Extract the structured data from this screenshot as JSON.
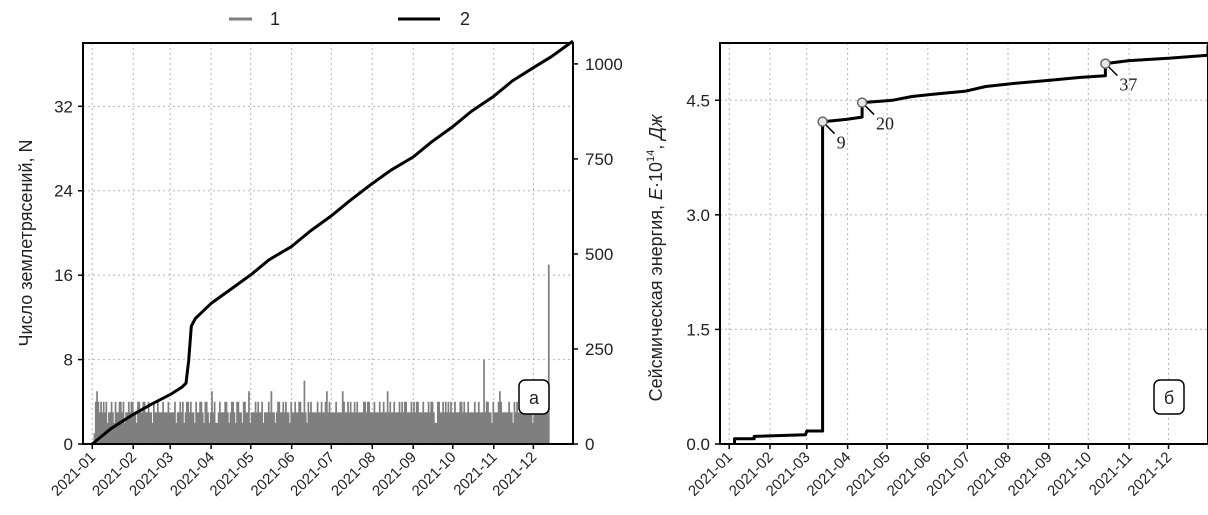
{
  "legend": [
    {
      "key": "1",
      "color": "#7f7f7f"
    },
    {
      "key": "2",
      "color": "#000000"
    }
  ],
  "chart_data": [
    {
      "type": "bar+line",
      "panel_label": "а",
      "ylabel_left": "Число землетрясений, N",
      "x_ticks": [
        "2021-01",
        "2021-02",
        "2021-03",
        "2021-04",
        "2021-05",
        "2021-06",
        "2021-07",
        "2021-08",
        "2021-09",
        "2021-10",
        "2021-11",
        "2021-12"
      ],
      "y_left_ticks": [
        "0",
        "8",
        "16",
        "24",
        "32"
      ],
      "y_right_ticks": [
        "0",
        "250",
        "500",
        "750",
        "1000"
      ],
      "ylim_left": [
        0,
        38
      ],
      "ylim_right": [
        0,
        1055
      ],
      "xlim": [
        "2020-12-25",
        "2021-12-31"
      ],
      "grid": true,
      "series": [
        {
          "name": "1",
          "kind": "bar",
          "axis": "left",
          "color": "#7f7f7f",
          "start_date": "2021-01-01",
          "values": [
            0,
            1,
            4,
            5,
            4,
            3,
            4,
            3,
            4,
            3,
            4,
            2,
            3,
            3,
            4,
            3,
            2,
            4,
            3,
            3,
            4,
            4,
            3,
            4,
            2,
            3,
            3,
            4,
            3,
            4,
            4,
            3,
            3,
            2,
            4,
            4,
            3,
            3,
            4,
            4,
            3,
            3,
            4,
            3,
            3,
            2,
            4,
            3,
            3,
            4,
            3,
            3,
            3,
            4,
            3,
            3,
            3,
            4,
            3,
            3,
            3,
            3,
            4,
            2,
            3,
            3,
            4,
            3,
            4,
            2,
            3,
            4,
            4,
            3,
            4,
            3,
            3,
            2,
            4,
            3,
            3,
            4,
            4,
            3,
            2,
            4,
            4,
            3,
            2,
            3,
            5,
            3,
            4,
            2,
            2,
            3,
            4,
            3,
            3,
            3,
            4,
            4,
            3,
            2,
            3,
            4,
            4,
            3,
            2,
            4,
            4,
            3,
            3,
            2,
            4,
            4,
            3,
            3,
            5,
            2,
            3,
            3,
            3,
            4,
            3,
            4,
            3,
            3,
            4,
            2,
            3,
            3,
            3,
            4,
            3,
            5,
            3,
            3,
            2,
            3,
            4,
            4,
            3,
            3,
            4,
            3,
            4,
            3,
            3,
            2,
            4,
            3,
            3,
            4,
            3,
            3,
            4,
            4,
            3,
            3,
            6,
            3,
            2,
            4,
            3,
            4,
            3,
            3,
            3,
            3,
            4,
            3,
            3,
            4,
            3,
            3,
            4,
            5,
            3,
            4,
            3,
            3,
            3,
            3,
            4,
            3,
            3,
            3,
            3,
            5,
            4,
            3,
            3,
            4,
            3,
            4,
            3,
            3,
            4,
            3,
            4,
            3,
            3,
            3,
            3,
            4,
            4,
            3,
            4,
            4,
            3,
            3,
            3,
            4,
            3,
            3,
            3,
            4,
            3,
            3,
            4,
            3,
            3,
            5,
            3,
            4,
            3,
            3,
            4,
            3,
            3,
            3,
            4,
            3,
            4,
            3,
            4,
            4,
            3,
            3,
            3,
            4,
            3,
            4,
            3,
            4,
            4,
            3,
            3,
            3,
            4,
            3,
            3,
            3,
            4,
            3,
            4,
            4,
            3,
            2,
            2,
            4,
            4,
            3,
            3,
            4,
            3,
            4,
            3,
            4,
            3,
            4,
            3,
            3,
            4,
            3,
            3,
            3,
            4,
            4,
            3,
            4,
            3,
            3,
            4,
            3,
            3,
            3,
            3,
            4,
            3,
            3,
            4,
            3,
            3,
            3,
            8,
            3,
            4,
            4,
            3,
            3,
            2,
            4,
            3,
            3,
            3,
            4,
            5,
            4,
            3,
            3,
            3,
            3,
            3,
            4,
            3,
            3,
            2,
            4,
            3,
            4,
            3,
            3,
            4,
            3,
            4,
            3,
            3,
            3,
            4,
            3,
            4,
            2,
            3,
            3,
            4,
            3,
            3,
            3,
            3,
            4,
            4,
            4,
            3,
            17
          ]
        },
        {
          "name": "2",
          "kind": "line",
          "axis": "right",
          "color": "#000000",
          "points": [
            [
              "2021-01-01",
              0
            ],
            [
              "2021-01-15",
              40
            ],
            [
              "2021-02-01",
              78
            ],
            [
              "2021-02-15",
              105
            ],
            [
              "2021-03-01",
              130
            ],
            [
              "2021-03-10",
              150
            ],
            [
              "2021-03-13",
              160
            ],
            [
              "2021-03-15",
              220
            ],
            [
              "2021-03-17",
              310
            ],
            [
              "2021-03-20",
              330
            ],
            [
              "2021-04-01",
              370
            ],
            [
              "2021-04-15",
              405
            ],
            [
              "2021-05-01",
              445
            ],
            [
              "2021-05-15",
              485
            ],
            [
              "2021-06-01",
              520
            ],
            [
              "2021-06-15",
              560
            ],
            [
              "2021-07-01",
              600
            ],
            [
              "2021-07-15",
              640
            ],
            [
              "2021-08-01",
              685
            ],
            [
              "2021-08-15",
              720
            ],
            [
              "2021-09-01",
              755
            ],
            [
              "2021-09-15",
              795
            ],
            [
              "2021-10-01",
              835
            ],
            [
              "2021-10-15",
              875
            ],
            [
              "2021-11-01",
              915
            ],
            [
              "2021-11-15",
              955
            ],
            [
              "2021-12-01",
              990
            ],
            [
              "2021-12-15",
              1020
            ],
            [
              "2021-12-27",
              1050
            ],
            [
              "2021-12-31",
              1060
            ]
          ]
        }
      ]
    },
    {
      "type": "line",
      "panel_label": "б",
      "ylabel_prefix": "Сейсмическая энергия, ",
      "ylabel_var": "E",
      "ylabel_mid": "·10",
      "ylabel_exp": "14",
      "ylabel_sep": ", ",
      "ylabel_unit": "Дж",
      "x_ticks": [
        "2021-01",
        "2021-02",
        "2021-03",
        "2021-04",
        "2021-05",
        "2021-06",
        "2021-07",
        "2021-08",
        "2021-09",
        "2021-10",
        "2021-11",
        "2021-12"
      ],
      "y_ticks": [
        "0.0",
        "1.5",
        "3.0",
        "4.5"
      ],
      "ylim": [
        0,
        5.25
      ],
      "xlim": [
        "2020-12-25",
        "2021-12-31"
      ],
      "grid": true,
      "series": [
        {
          "kind": "step",
          "color": "#000000",
          "points": [
            [
              "2021-01-05",
              0.0
            ],
            [
              "2021-01-05",
              0.07
            ],
            [
              "2021-01-20",
              0.07
            ],
            [
              "2021-01-20",
              0.1
            ],
            [
              "2021-02-28",
              0.12
            ],
            [
              "2021-03-01",
              0.17
            ],
            [
              "2021-03-13",
              0.17
            ],
            [
              "2021-03-13",
              4.22
            ],
            [
              "2021-03-31",
              4.25
            ],
            [
              "2021-04-12",
              4.28
            ],
            [
              "2021-04-12",
              4.47
            ],
            [
              "2021-05-05",
              4.5
            ],
            [
              "2021-05-20",
              4.55
            ],
            [
              "2021-06-05",
              4.58
            ],
            [
              "2021-06-30",
              4.62
            ],
            [
              "2021-07-15",
              4.68
            ],
            [
              "2021-08-05",
              4.72
            ],
            [
              "2021-09-01",
              4.76
            ],
            [
              "2021-09-25",
              4.8
            ],
            [
              "2021-10-14",
              4.82
            ],
            [
              "2021-10-14",
              4.98
            ],
            [
              "2021-11-01",
              5.02
            ],
            [
              "2021-12-01",
              5.05
            ],
            [
              "2021-12-31",
              5.09
            ],
            [
              "2021-12-31",
              5.22
            ]
          ]
        }
      ],
      "annotations": [
        {
          "label": "9",
          "date": "2021-03-13",
          "value": 4.22
        },
        {
          "label": "20",
          "date": "2021-04-12",
          "value": 4.47
        },
        {
          "label": "37",
          "date": "2021-10-14",
          "value": 4.98
        }
      ]
    }
  ]
}
